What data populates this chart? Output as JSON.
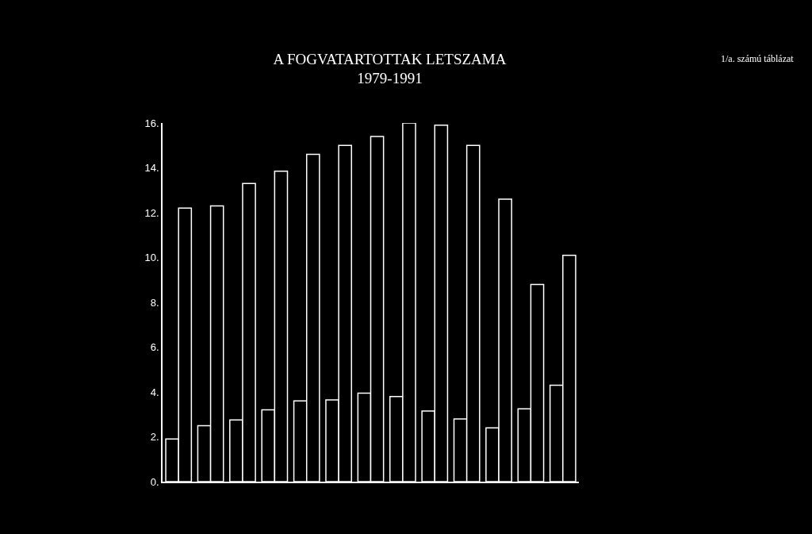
{
  "chart_data": {
    "type": "bar",
    "title": "A FOGVATARTOTTAK LETSZAMA\n1979-1991",
    "annotations": [
      "1/a. számú táblázat"
    ],
    "categories": [
      null,
      null,
      null,
      null,
      null,
      null,
      null,
      null,
      null,
      null,
      null,
      null,
      null
    ],
    "series": [
      {
        "color": "#ffffff",
        "values": [
          1.9,
          2.5,
          2.75,
          3.2,
          3.6,
          3.65,
          3.95,
          3.8,
          3.15,
          2.8,
          2.4,
          3.25,
          4.3
        ]
      },
      {
        "color": "#ffffff",
        "values": [
          12.2,
          12.3,
          13.3,
          13.85,
          14.6,
          15.0,
          15.4,
          16.0,
          15.9,
          15.0,
          12.6,
          8.8,
          10.1
        ]
      }
    ],
    "ylim": [
      0,
      16
    ],
    "yticks": [
      {
        "value": 0,
        "label": "0."
      },
      {
        "value": 2,
        "label": "2."
      },
      {
        "value": 4,
        "label": "4."
      },
      {
        "value": 6,
        "label": "6."
      },
      {
        "value": 8,
        "label": "8."
      },
      {
        "value": 10,
        "label": "10."
      },
      {
        "value": 12,
        "label": "12."
      },
      {
        "value": 14,
        "label": "14."
      },
      {
        "value": 16,
        "label": "16."
      }
    ],
    "grid": false
  }
}
